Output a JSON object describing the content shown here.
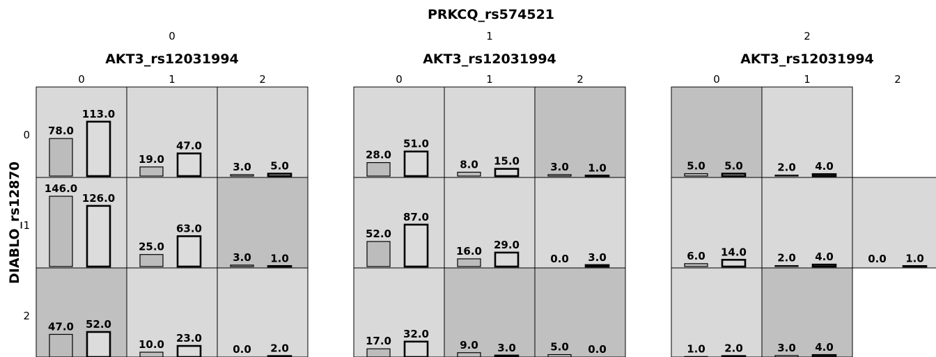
{
  "chart_data": {
    "type": "bar",
    "title": "PRKCQ_rs574521",
    "panel_values": [
      "0",
      "1",
      "2"
    ],
    "x_variable": "AKT3_rs12031994",
    "x_categories": [
      "0",
      "1",
      "2"
    ],
    "row_variable": "DIABLO_rs12870",
    "row_categories": [
      "0",
      "1",
      "2"
    ],
    "bars_per_cell": 2,
    "cells": [
      {
        "panel": "0",
        "row": "0",
        "col": "0",
        "values": [
          78.0,
          113.0
        ],
        "shade": "light"
      },
      {
        "panel": "0",
        "row": "0",
        "col": "1",
        "values": [
          19.0,
          47.0
        ],
        "shade": "light"
      },
      {
        "panel": "0",
        "row": "0",
        "col": "2",
        "values": [
          3.0,
          5.0
        ],
        "shade": "light"
      },
      {
        "panel": "0",
        "row": "1",
        "col": "0",
        "values": [
          146.0,
          126.0
        ],
        "shade": "light"
      },
      {
        "panel": "0",
        "row": "1",
        "col": "1",
        "values": [
          25.0,
          63.0
        ],
        "shade": "light"
      },
      {
        "panel": "0",
        "row": "1",
        "col": "2",
        "values": [
          3.0,
          1.0
        ],
        "shade": "dark"
      },
      {
        "panel": "0",
        "row": "2",
        "col": "0",
        "values": [
          47.0,
          52.0
        ],
        "shade": "dark"
      },
      {
        "panel": "0",
        "row": "2",
        "col": "1",
        "values": [
          10.0,
          23.0
        ],
        "shade": "light"
      },
      {
        "panel": "0",
        "row": "2",
        "col": "2",
        "values": [
          0.0,
          2.0
        ],
        "shade": "light"
      },
      {
        "panel": "1",
        "row": "0",
        "col": "0",
        "values": [
          28.0,
          51.0
        ],
        "shade": "light"
      },
      {
        "panel": "1",
        "row": "0",
        "col": "1",
        "values": [
          8.0,
          15.0
        ],
        "shade": "light"
      },
      {
        "panel": "1",
        "row": "0",
        "col": "2",
        "values": [
          3.0,
          1.0
        ],
        "shade": "dark"
      },
      {
        "panel": "1",
        "row": "1",
        "col": "0",
        "values": [
          52.0,
          87.0
        ],
        "shade": "light"
      },
      {
        "panel": "1",
        "row": "1",
        "col": "1",
        "values": [
          16.0,
          29.0
        ],
        "shade": "light"
      },
      {
        "panel": "1",
        "row": "1",
        "col": "2",
        "values": [
          0.0,
          3.0
        ],
        "shade": "light"
      },
      {
        "panel": "1",
        "row": "2",
        "col": "0",
        "values": [
          17.0,
          32.0
        ],
        "shade": "light"
      },
      {
        "panel": "1",
        "row": "2",
        "col": "1",
        "values": [
          9.0,
          3.0
        ],
        "shade": "dark"
      },
      {
        "panel": "1",
        "row": "2",
        "col": "2",
        "values": [
          5.0,
          0.0
        ],
        "shade": "dark"
      },
      {
        "panel": "2",
        "row": "0",
        "col": "0",
        "values": [
          5.0,
          5.0
        ],
        "shade": "dark"
      },
      {
        "panel": "2",
        "row": "0",
        "col": "1",
        "values": [
          2.0,
          4.0
        ],
        "shade": "light"
      },
      {
        "panel": "2",
        "row": "1",
        "col": "0",
        "values": [
          6.0,
          14.0
        ],
        "shade": "light"
      },
      {
        "panel": "2",
        "row": "1",
        "col": "1",
        "values": [
          2.0,
          4.0
        ],
        "shade": "light"
      },
      {
        "panel": "2",
        "row": "1",
        "col": "2",
        "values": [
          0.0,
          1.0
        ],
        "shade": "light"
      },
      {
        "panel": "2",
        "row": "2",
        "col": "0",
        "values": [
          1.0,
          2.0
        ],
        "shade": "light"
      },
      {
        "panel": "2",
        "row": "2",
        "col": "1",
        "values": [
          3.0,
          4.0
        ],
        "shade": "dark"
      }
    ],
    "value_max": 146.0,
    "grid": false,
    "legend": "none"
  },
  "colors": {
    "cell_light": "#d9d9d9",
    "cell_dark": "#c0c0c0",
    "bar_first": "#bcbcbc",
    "bar_second": "#dcdcdc",
    "border": "#000000"
  }
}
